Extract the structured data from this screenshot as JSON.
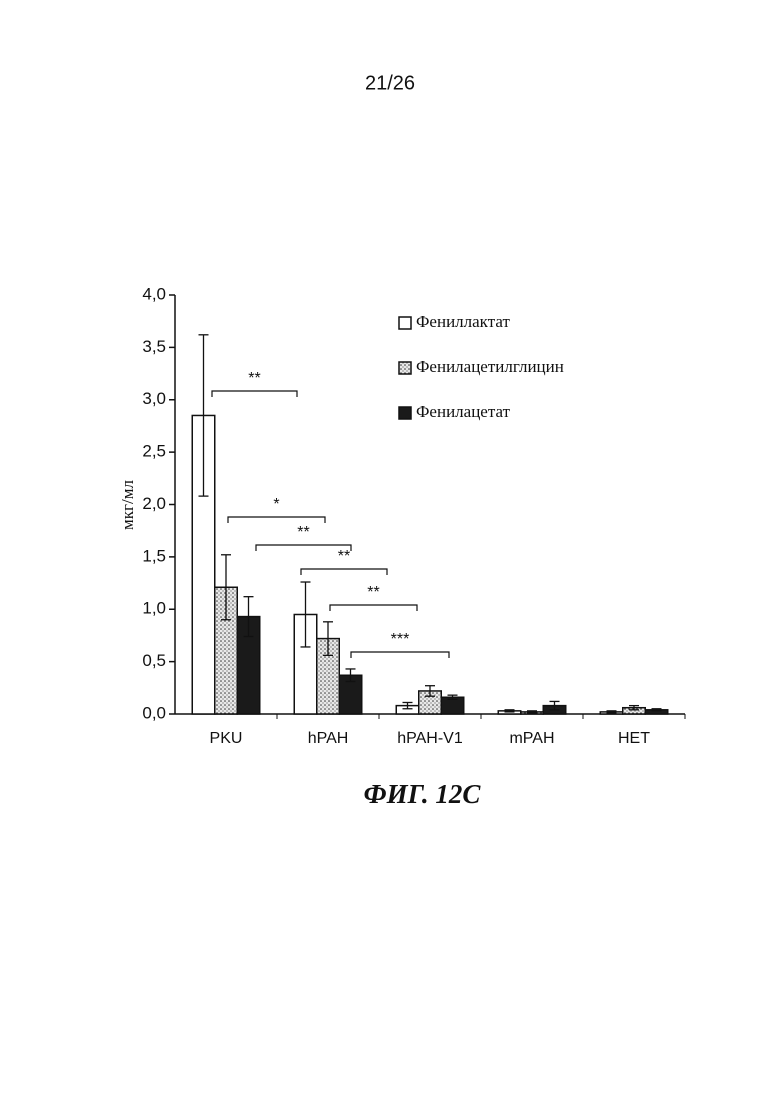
{
  "page_number": "21/26",
  "chart_data": {
    "type": "bar",
    "ylabel": "мкг/мл",
    "caption": "ФИГ. 12C",
    "categories": [
      "PKU",
      "hPAH",
      "hPAH-V1",
      "mPAH",
      "HET"
    ],
    "series": [
      {
        "name": "Фениллактат",
        "color": "#ffffff",
        "values": [
          2.85,
          0.95,
          0.08,
          0.03,
          0.02
        ],
        "errors": [
          0.77,
          0.31,
          0.03,
          0.01,
          0.01
        ]
      },
      {
        "name": "Фенилацетилглицин",
        "color": "#cfcfcf",
        "values": [
          1.21,
          0.72,
          0.22,
          0.02,
          0.06
        ],
        "errors": [
          0.31,
          0.16,
          0.05,
          0.01,
          0.02
        ]
      },
      {
        "name": "Фенилацетат",
        "color": "#1a1a1a",
        "values": [
          0.93,
          0.37,
          0.16,
          0.08,
          0.04
        ],
        "errors": [
          0.19,
          0.06,
          0.02,
          0.04,
          0.01
        ]
      }
    ],
    "ylim": [
      0,
      4
    ],
    "yticks": [
      {
        "value": 0,
        "label": "0,0"
      },
      {
        "value": 0.5,
        "label": "0,5"
      },
      {
        "value": 1,
        "label": "1,0"
      },
      {
        "value": 1.5,
        "label": "1,5"
      },
      {
        "value": 2,
        "label": "2,0"
      },
      {
        "value": 2.5,
        "label": "2,5"
      },
      {
        "value": 3,
        "label": "3,0"
      },
      {
        "value": 3.5,
        "label": "3,5"
      },
      {
        "value": 4,
        "label": "4,0"
      }
    ],
    "annotations": [
      "**",
      "*",
      "**",
      "**",
      "**",
      "***"
    ]
  }
}
